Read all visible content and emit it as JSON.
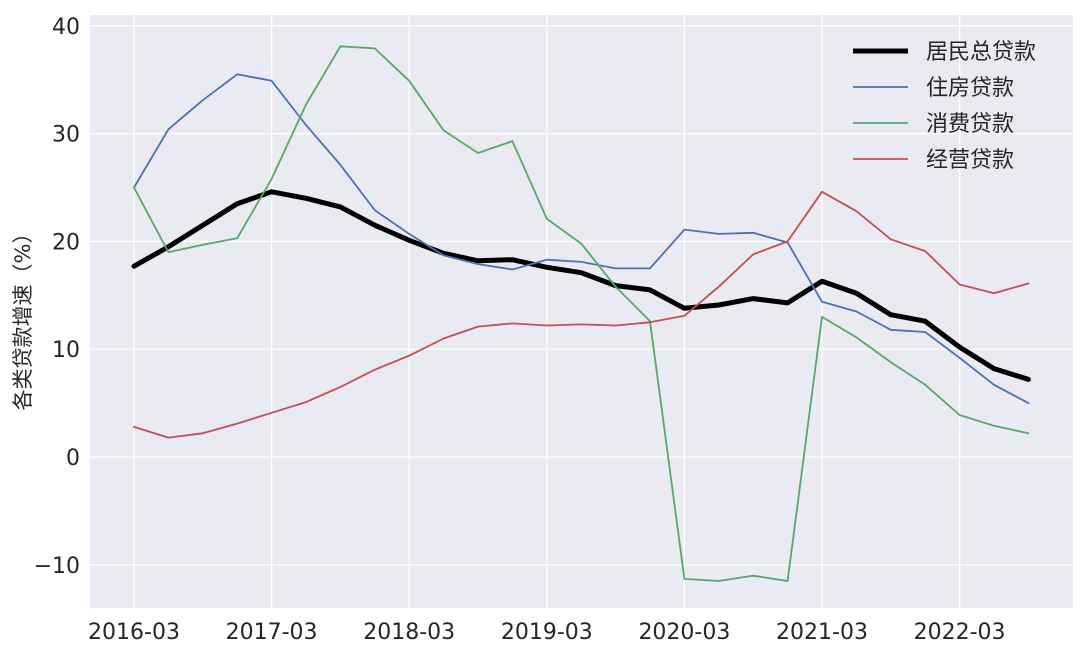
{
  "chart_data": {
    "type": "line",
    "ylabel": "各类贷款增速（%）",
    "xlabel": "",
    "ylim": [
      -14,
      41
    ],
    "yticks": [
      -10,
      0,
      10,
      20,
      30,
      40
    ],
    "x_tick_labels": [
      "2016-03",
      "2017-03",
      "2018-03",
      "2019-03",
      "2020-03",
      "2021-03",
      "2022-03"
    ],
    "x": [
      "2016-03",
      "2016-06",
      "2016-09",
      "2016-12",
      "2017-03",
      "2017-06",
      "2017-09",
      "2017-12",
      "2018-03",
      "2018-06",
      "2018-09",
      "2018-12",
      "2019-03",
      "2019-06",
      "2019-09",
      "2019-12",
      "2020-03",
      "2020-06",
      "2020-09",
      "2020-12",
      "2021-03",
      "2021-06",
      "2021-09",
      "2021-12",
      "2022-03",
      "2022-06",
      "2022-09"
    ],
    "grid": true,
    "legend_position": "top-right",
    "colors": {
      "background": "#EAEAF2",
      "grid": "#FFFFFF"
    },
    "series": [
      {
        "name": "居民总贷款",
        "color": "#000000",
        "values": [
          17.7,
          19.5,
          21.5,
          23.5,
          24.6,
          24.0,
          23.2,
          21.5,
          20.1,
          18.9,
          18.2,
          18.3,
          17.6,
          17.1,
          15.9,
          15.5,
          13.8,
          14.1,
          14.7,
          14.3,
          16.3,
          15.2,
          13.2,
          12.6,
          10.2,
          8.2,
          7.2
        ]
      },
      {
        "name": "住房贷款",
        "color": "#4C72B0",
        "values": [
          25.0,
          30.4,
          33.1,
          35.5,
          34.9,
          30.8,
          27.1,
          22.9,
          20.7,
          18.7,
          17.9,
          17.4,
          18.3,
          18.1,
          17.5,
          17.5,
          21.1,
          20.7,
          20.8,
          19.9,
          14.4,
          13.5,
          11.8,
          11.6,
          9.2,
          6.7,
          5.0
        ]
      },
      {
        "name": "消费贷款",
        "color": "#55A868",
        "values": [
          25.0,
          19.0,
          19.7,
          20.3,
          25.8,
          32.7,
          38.1,
          37.9,
          34.9,
          30.3,
          28.2,
          29.3,
          22.1,
          19.8,
          15.8,
          12.6,
          -11.3,
          -11.5,
          -11.0,
          -11.5,
          13.0,
          11.1,
          8.8,
          6.7,
          3.9,
          2.9,
          2.2
        ]
      },
      {
        "name": "经营贷款",
        "color": "#C44E52",
        "values": [
          2.8,
          1.8,
          2.2,
          3.1,
          4.1,
          5.1,
          6.5,
          8.1,
          9.4,
          11.0,
          12.1,
          12.4,
          12.2,
          12.3,
          12.2,
          12.5,
          13.1,
          15.8,
          18.8,
          20.0,
          24.6,
          22.8,
          20.2,
          19.1,
          16.0,
          15.2,
          16.1
        ]
      }
    ]
  }
}
